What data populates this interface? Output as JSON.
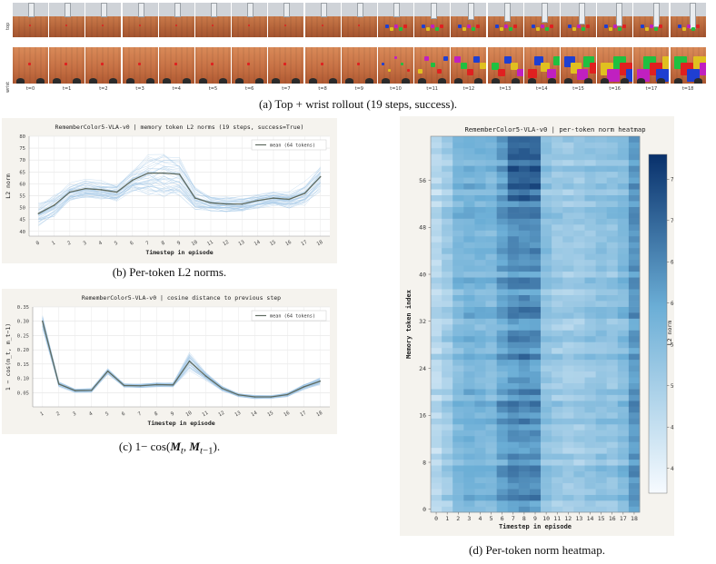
{
  "panel_a": {
    "row_labels": [
      "top",
      "wrist"
    ],
    "step_labels": [
      "t=0",
      "t=1",
      "t=2",
      "t=3",
      "t=4",
      "t=5",
      "t=6",
      "t=7",
      "t=8",
      "t=9",
      "t=10",
      "t=11",
      "t=12",
      "t=13",
      "t=14",
      "t=15",
      "t=16",
      "t=17",
      "t=18"
    ],
    "caption": "(a) Top + wrist rollout (19 steps, success)."
  },
  "panel_b": {
    "caption": "(b) Per-token L2 norms."
  },
  "panel_c": {
    "caption": "(c) 1− cos(M_t, M_t−1)."
  },
  "panel_d": {
    "caption": "(d) Per-token norm heatmap."
  },
  "chart_data": [
    {
      "type": "line",
      "title": "RememberColor5-VLA-v0 | memory token L2 norms (19 steps, success=True)",
      "xlabel": "Timestep in episode",
      "ylabel": "L2 norm",
      "x": [
        0,
        1,
        2,
        3,
        4,
        5,
        6,
        7,
        8,
        9,
        10,
        11,
        12,
        13,
        14,
        15,
        16,
        17,
        18
      ],
      "series": [
        {
          "name": "mean (64 tokens)",
          "values": [
            47.5,
            51,
            56.5,
            58,
            57.5,
            56.5,
            61.5,
            64.5,
            64.5,
            64,
            54,
            52,
            51.5,
            51.5,
            53,
            54,
            53.5,
            56,
            63
          ]
        }
      ],
      "ylim": [
        38,
        80
      ],
      "yticks": [
        40,
        45,
        50,
        55,
        60,
        65,
        70,
        75,
        80
      ],
      "grid": true,
      "legend": "top-right"
    },
    {
      "type": "line",
      "title": "RememberColor5-VLA-v0 | cosine distance to previous step",
      "xlabel": "Timestep in episode",
      "ylabel": "1 − cos(m_t, m_t−1)",
      "x": [
        1,
        2,
        3,
        4,
        5,
        6,
        7,
        8,
        9,
        10,
        11,
        12,
        13,
        14,
        15,
        16,
        17,
        18
      ],
      "series": [
        {
          "name": "mean (64 tokens)",
          "values": [
            0.3,
            0.08,
            0.057,
            0.058,
            0.125,
            0.075,
            0.074,
            0.078,
            0.077,
            0.16,
            0.108,
            0.065,
            0.042,
            0.035,
            0.035,
            0.043,
            0.07,
            0.09
          ]
        }
      ],
      "ylim": [
        0.0,
        0.35
      ],
      "yticks": [
        0.05,
        0.1,
        0.15,
        0.2,
        0.25,
        0.3,
        0.35
      ],
      "yticklabels": [
        "0.05",
        "0.10",
        "0.15",
        "0.20",
        "0.25",
        "0.30",
        "0.35"
      ],
      "grid": true,
      "legend": "top-right"
    },
    {
      "type": "heatmap",
      "title": "RememberColor5-VLA-v0 | per-token norm heatmap",
      "xlabel": "Timestep in episode",
      "ylabel": "Memory token index",
      "x": [
        0,
        1,
        2,
        3,
        4,
        5,
        6,
        7,
        8,
        9,
        10,
        11,
        12,
        13,
        14,
        15,
        16,
        17,
        18
      ],
      "yticks": [
        0,
        8,
        16,
        24,
        32,
        40,
        48,
        56
      ],
      "rows": 64,
      "colorbar_label": "L2 norm",
      "colorbar_ticks": [
        40,
        45,
        50,
        55,
        60,
        65,
        70,
        75
      ],
      "vmin": 37,
      "vmax": 78,
      "column_means": [
        47.5,
        51,
        56.5,
        58,
        57.5,
        56.5,
        61.5,
        64.5,
        64.5,
        64,
        54,
        52,
        51.5,
        51.5,
        53,
        54,
        53.5,
        56,
        63
      ],
      "colors": {
        "low": "#f7fbff",
        "mid": "#6baed6",
        "high": "#08306b"
      }
    }
  ]
}
